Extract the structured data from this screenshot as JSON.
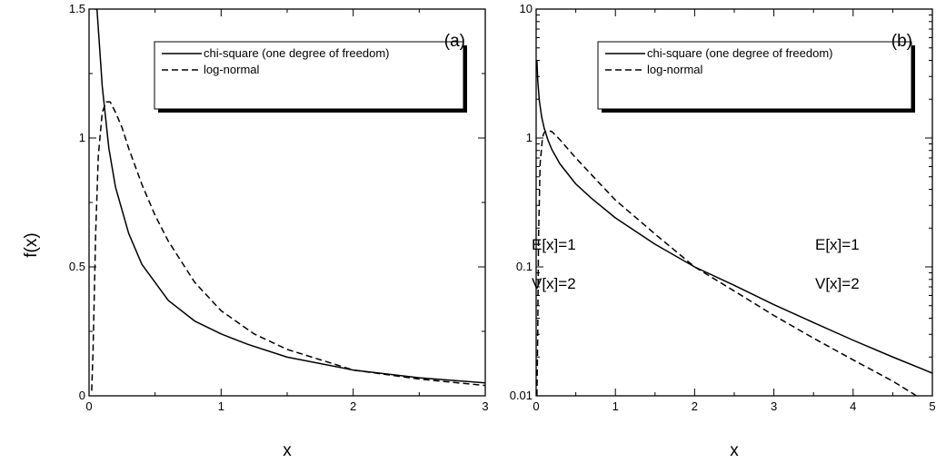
{
  "figure": {
    "ylabel": "f(x)"
  },
  "chart_data": [
    {
      "type": "line",
      "panel_label": "(a)",
      "xlabel": "x",
      "ylabel": "f(x)",
      "xlim": [
        0,
        3
      ],
      "ylim": [
        0,
        1.5
      ],
      "yscale": "linear",
      "x_ticks": [
        0,
        1,
        2,
        3
      ],
      "y_ticks": [
        0,
        0.5,
        1,
        1.5
      ],
      "x_tick_labels": [
        "0",
        "1",
        "2",
        "3"
      ],
      "y_tick_labels": [
        "0",
        "0.5",
        "1",
        "1.5"
      ],
      "grid": false,
      "legend_position": "top-right",
      "annotations": [
        "E[x]=1",
        "V[x]=2"
      ],
      "series": [
        {
          "name": "chi-square (one degree of freedom)",
          "style": "solid",
          "x": [
            0.045,
            0.06,
            0.08,
            0.1,
            0.15,
            0.2,
            0.3,
            0.4,
            0.5,
            0.6,
            0.8,
            1.0,
            1.2,
            1.5,
            2.0,
            2.5,
            3.0
          ],
          "y": [
            1.5,
            1.5,
            1.35,
            1.2,
            0.96,
            0.81,
            0.63,
            0.51,
            0.44,
            0.37,
            0.29,
            0.24,
            0.2,
            0.15,
            0.1,
            0.07,
            0.05
          ]
        },
        {
          "name": "log-normal",
          "style": "dashed",
          "x": [
            0.02,
            0.03,
            0.05,
            0.07,
            0.1,
            0.13,
            0.16,
            0.2,
            0.25,
            0.3,
            0.4,
            0.5,
            0.6,
            0.8,
            1.0,
            1.25,
            1.5,
            2.0,
            2.5,
            3.0
          ],
          "y": [
            0.02,
            0.17,
            0.63,
            0.93,
            1.1,
            1.14,
            1.14,
            1.1,
            1.04,
            0.96,
            0.82,
            0.7,
            0.6,
            0.44,
            0.33,
            0.24,
            0.18,
            0.1,
            0.065,
            0.04
          ]
        }
      ]
    },
    {
      "type": "line",
      "panel_label": "(b)",
      "xlabel": "x",
      "ylabel": "f(x)",
      "xlim": [
        0,
        5
      ],
      "ylim": [
        0.01,
        10
      ],
      "yscale": "log",
      "x_ticks": [
        0,
        1,
        2,
        3,
        4,
        5
      ],
      "y_ticks": [
        0.01,
        0.1,
        1,
        10
      ],
      "x_tick_labels": [
        "0",
        "1",
        "2",
        "3",
        "4",
        "5"
      ],
      "y_tick_labels": [
        "0.01",
        "0.1",
        "1",
        "10"
      ],
      "grid": false,
      "legend_position": "top-right",
      "annotations": [
        "E[x]=1",
        "V[x]=2"
      ],
      "series": [
        {
          "name": "chi-square (one degree of freedom)",
          "style": "solid",
          "x": [
            0.01,
            0.02,
            0.04,
            0.07,
            0.1,
            0.15,
            0.2,
            0.3,
            0.5,
            0.7,
            1.0,
            1.5,
            2.0,
            2.5,
            3.0,
            3.5,
            4.0,
            4.5,
            5.0
          ],
          "y": [
            3.97,
            2.8,
            1.95,
            1.45,
            1.2,
            0.96,
            0.81,
            0.63,
            0.44,
            0.34,
            0.24,
            0.15,
            0.1,
            0.072,
            0.051,
            0.037,
            0.027,
            0.02,
            0.015
          ]
        },
        {
          "name": "log-normal",
          "style": "dashed",
          "x": [
            0.01,
            0.02,
            0.03,
            0.05,
            0.08,
            0.1,
            0.15,
            0.2,
            0.3,
            0.5,
            0.75,
            1.0,
            1.5,
            2.0,
            2.5,
            3.0,
            3.5,
            4.0,
            4.5,
            4.8
          ],
          "y": [
            0.01,
            0.03,
            0.17,
            0.63,
            1.01,
            1.1,
            1.14,
            1.12,
            0.97,
            0.7,
            0.48,
            0.33,
            0.18,
            0.1,
            0.065,
            0.042,
            0.028,
            0.019,
            0.013,
            0.01
          ]
        }
      ]
    }
  ]
}
